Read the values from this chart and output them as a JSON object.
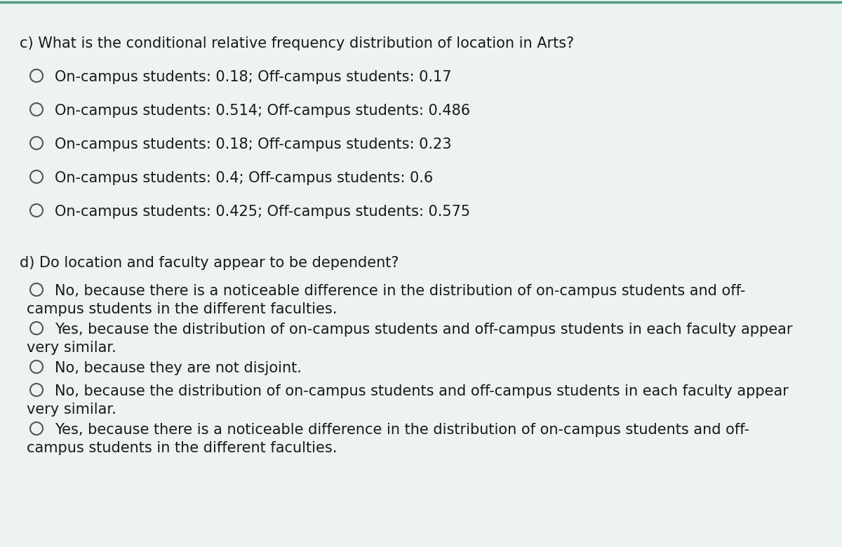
{
  "background_color": "#edf3f1",
  "text_color": "#1a1a1a",
  "font_size": 15.0,
  "circle_color": "#555555",
  "top_border_color": "#4a9a7a",
  "section_c": {
    "question": "c) What is the conditional relative frequency distribution of location in Arts?",
    "options": [
      "On-campus students: 0.18; Off-campus students: 0.17",
      "On-campus students: 0.514; Off-campus students: 0.486",
      "On-campus students: 0.18; Off-campus students: 0.23",
      "On-campus students: 0.4; Off-campus students: 0.6",
      "On-campus students: 0.425; Off-campus students: 0.575"
    ]
  },
  "section_d": {
    "question": "d) Do location and faculty appear to be dependent?",
    "options": [
      [
        "No, because there is a noticeable difference in the distribution of on-campus students and off-",
        "campus students in the different faculties."
      ],
      [
        "Yes, because the distribution of on-campus students and off-campus students in each faculty appear",
        "very similar."
      ],
      [
        "No, because they are not disjoint."
      ],
      [
        "No, because the distribution of on-campus students and off-campus students in each faculty appear",
        "very similar."
      ],
      [
        "Yes, because there is a noticeable difference in the distribution of on-campus students and off-",
        "campus students in the different faculties."
      ]
    ]
  }
}
